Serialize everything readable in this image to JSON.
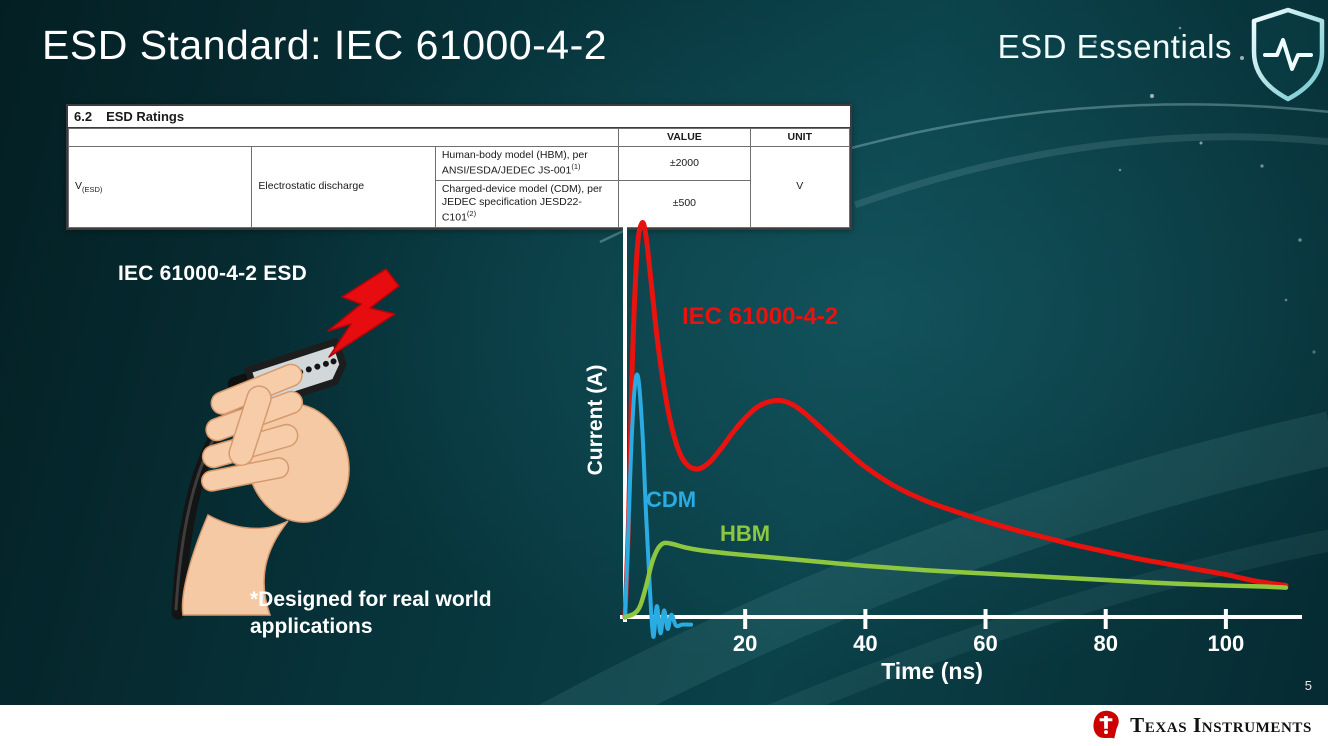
{
  "slide": {
    "title": "ESD Standard: IEC 61000-4-2",
    "brand": "ESD Essentials",
    "page_number": "5"
  },
  "footer": {
    "logo_text": "Texas Instruments",
    "logo_color": "#cc0000"
  },
  "ratings_table": {
    "section_number": "6.2",
    "section_title": "ESD Ratings",
    "headers": {
      "value": "VALUE",
      "unit": "UNIT"
    },
    "param": {
      "symbol": "V",
      "symbol_sub": "(ESD)",
      "name": "Electrostatic discharge"
    },
    "rows": [
      {
        "desc": "Human-body model (HBM), per ANSI/ESDA/JEDEC JS-001",
        "footnote": "(1)",
        "value": "±2000"
      },
      {
        "desc": "Charged-device model (CDM), per JEDEC specification JESD22-C101",
        "footnote": "(2)",
        "value": "±500"
      }
    ],
    "unit": "V"
  },
  "illustration": {
    "caption": "IEC 61000-4-2 ESD",
    "note": "*Designed for real world applications"
  },
  "chart_data": {
    "type": "line",
    "title": "",
    "xlabel": "Time (ns)",
    "ylabel": "Current (A)",
    "xlim": [
      0,
      112
    ],
    "ylim": [
      -0.35,
      4.0
    ],
    "xticks": [
      20,
      40,
      60,
      80,
      100
    ],
    "grid": false,
    "legend_position": "inline-annotations",
    "axis_color": "#ffffff",
    "series": [
      {
        "name": "IEC 61000-4-2",
        "color": "#e8120e",
        "width": 5,
        "t": [
          0,
          0.6,
          1.2,
          2,
          2.8,
          3.5,
          4.5,
          5.5,
          7,
          8.5,
          10,
          12,
          14,
          16,
          18,
          20,
          22,
          24,
          26,
          28,
          30,
          33,
          36,
          40,
          45,
          50,
          55,
          60,
          65,
          70,
          75,
          80,
          85,
          90,
          95,
          100,
          105,
          110
        ],
        "values": [
          0,
          0.9,
          2.3,
          3.35,
          3.62,
          3.5,
          3.0,
          2.5,
          1.95,
          1.6,
          1.42,
          1.36,
          1.42,
          1.55,
          1.7,
          1.83,
          1.93,
          1.98,
          1.99,
          1.95,
          1.87,
          1.72,
          1.57,
          1.38,
          1.2,
          1.07,
          0.97,
          0.88,
          0.8,
          0.73,
          0.66,
          0.6,
          0.54,
          0.49,
          0.44,
          0.39,
          0.33,
          0.29
        ]
      },
      {
        "name": "CDM",
        "color": "#2aabe2",
        "width": 4,
        "t": [
          0,
          0.4,
          1,
          1.6,
          2.2,
          2.9,
          3.5,
          4.1,
          4.7,
          5.3,
          5.9,
          6.5,
          7.1,
          7.7,
          8.5,
          9.5,
          11
        ],
        "values": [
          0,
          0.55,
          1.5,
          2.1,
          2.2,
          1.7,
          0.95,
          0.3,
          -0.18,
          0.1,
          -0.15,
          0.06,
          -0.11,
          0.02,
          -0.08,
          -0.07,
          -0.07
        ]
      },
      {
        "name": "HBM",
        "color": "#8dc63f",
        "width": 4.5,
        "t": [
          0,
          1.5,
          2.5,
          3.5,
          4.5,
          5.5,
          6.5,
          8,
          10,
          13,
          17,
          22,
          30,
          40,
          50,
          60,
          70,
          80,
          90,
          100,
          106,
          110
        ],
        "values": [
          0,
          0.03,
          0.1,
          0.28,
          0.5,
          0.63,
          0.68,
          0.67,
          0.64,
          0.61,
          0.585,
          0.56,
          0.52,
          0.47,
          0.43,
          0.4,
          0.37,
          0.34,
          0.31,
          0.29,
          0.28,
          0.27
        ]
      }
    ]
  }
}
